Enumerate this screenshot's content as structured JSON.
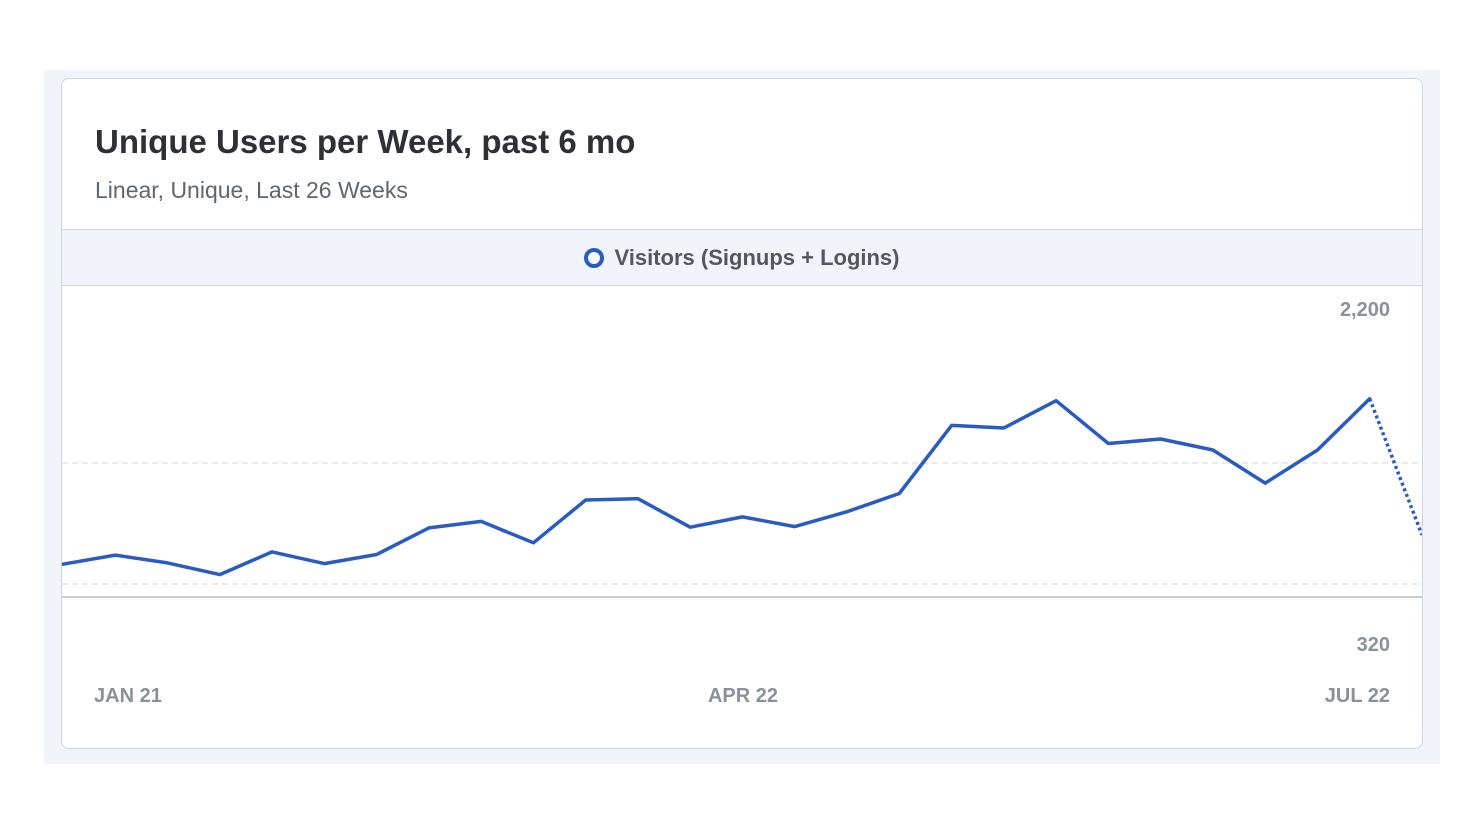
{
  "card": {
    "title": "Unique Users per Week, past 6 mo",
    "subtitle": "Linear, Unique, Last 26 Weeks"
  },
  "colors": {
    "line": "#2a5bc1",
    "grid": "#dfe3e8",
    "axis": "#c9ced6",
    "tick_text": "#8b919b"
  },
  "chart_data": {
    "type": "line",
    "title": "Unique Users per Week, past 6 mo",
    "subtitle": "Linear, Unique, Last 26 Weeks",
    "x_tick_labels": [
      "JAN 21",
      "APR 22",
      "JUL 22"
    ],
    "y_tick_labels": [
      "2,200",
      "320"
    ],
    "ylim": [
      320,
      2200
    ],
    "grid": true,
    "legend_position": "top",
    "series": [
      {
        "name": "Visitors (Signups + Logins)",
        "values": [
          480,
          550,
          490,
          400,
          575,
          485,
          555,
          760,
          810,
          645,
          975,
          985,
          765,
          845,
          770,
          885,
          1025,
          1550,
          1530,
          1740,
          1410,
          1445,
          1360,
          1105,
          1360,
          1755,
          705
        ],
        "partial_last_point": true
      }
    ]
  }
}
